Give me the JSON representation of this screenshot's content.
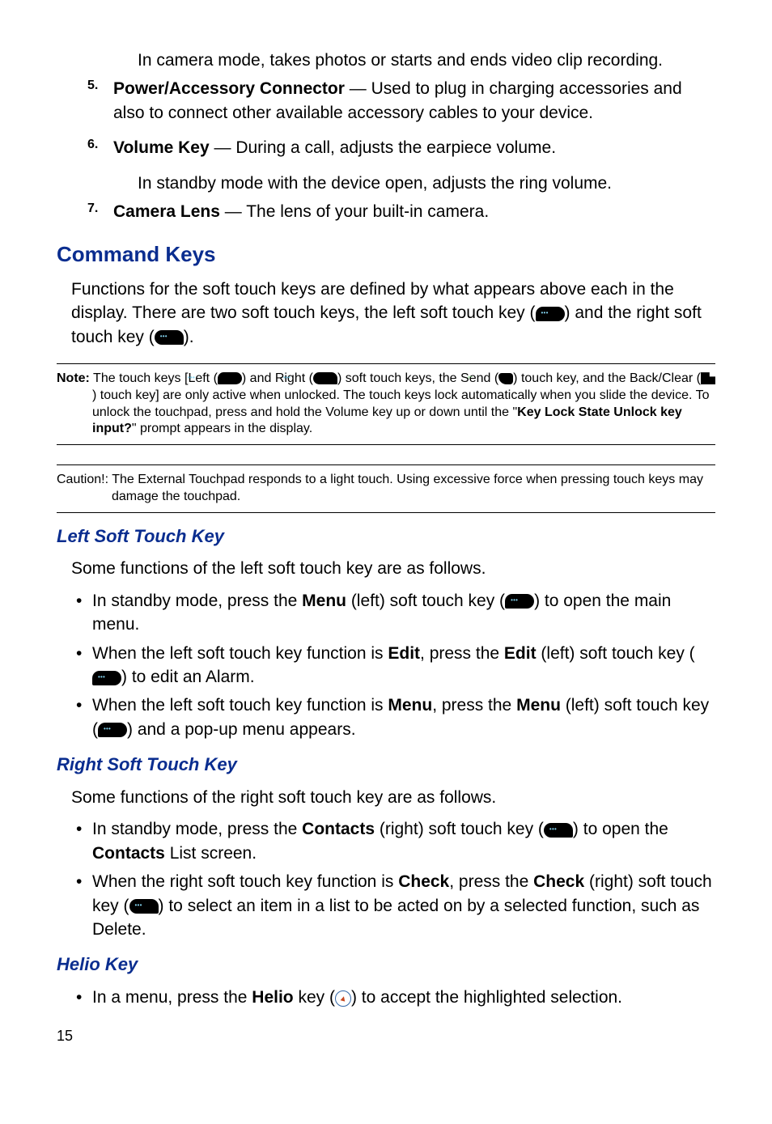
{
  "intro_camera": "In camera mode, takes photos or starts and ends video clip recording.",
  "items": {
    "5": {
      "num": "5.",
      "title": "Power/Accessory Connector",
      "text": " — Used to plug in charging accessories and also to connect other available accessory cables to your device."
    },
    "6": {
      "num": "6.",
      "title": "Volume Key",
      "text": " — During a call, adjusts the earpiece volume.",
      "sub": "In standby mode with the device open, adjusts the ring volume."
    },
    "7": {
      "num": "7.",
      "title": "Camera Lens",
      "text": " — The lens of your built-in camera."
    }
  },
  "command_keys": {
    "heading": "Command Keys",
    "p1a": "Functions for the soft touch keys are defined by what appears above each in the display. There are two soft touch keys, the left soft touch key (",
    "p1b": ") and the right soft touch key (",
    "p1c": ")."
  },
  "note": {
    "label": "Note:",
    "t1": " The touch keys [Left (",
    "t2": ") and Right (",
    "t3": ") soft touch keys, the Send (",
    "t4": ") touch key, and the Back/Clear (",
    "t5": ") touch key] are only active when unlocked. The touch keys lock automatically when you slide the device. To unlock the touchpad, press and hold the Volume key up or down until the \"",
    "bold": "Key Lock State Unlock key input?",
    "t6": "\" prompt appears in the display."
  },
  "caution": {
    "label": "Caution!:",
    "text": " The External Touchpad responds to a light touch. Using excessive force when pressing touch keys may damage the touchpad."
  },
  "left_key": {
    "heading": "Left Soft Touch Key",
    "intro": "Some functions of the left soft touch key are as follows.",
    "b1a": "In standby mode, press the ",
    "b1bold": "Menu",
    "b1b": " (left) soft touch key (",
    "b1c": ") to open the main menu.",
    "b2a": "When the left soft touch key function is ",
    "b2bold1": "Edit",
    "b2b": ", press the ",
    "b2bold2": "Edit",
    "b2c": " (left) soft touch key (",
    "b2d": ") to edit an Alarm.",
    "b3a": "When the left soft touch key function is ",
    "b3bold1": "Menu",
    "b3b": ", press the ",
    "b3bold2": "Menu",
    "b3c": " (left) soft touch key (",
    "b3d": ") and a pop-up menu appears."
  },
  "right_key": {
    "heading": "Right Soft Touch Key",
    "intro": "Some functions of the right soft touch key are as follows.",
    "b1a": "In standby mode, press the ",
    "b1bold": "Contacts",
    "b1b": " (right) soft touch key (",
    "b1c": ") to open the ",
    "b1bold2": "Contacts",
    "b1d": " List screen.",
    "b2a": "When the right soft touch key function is ",
    "b2bold1": "Check",
    "b2b": ", press the ",
    "b2bold2": "Check",
    "b2c": " (right) soft touch key (",
    "b2d": ") to select an item in a list to be acted on by a selected function, such as Delete."
  },
  "helio": {
    "heading": "Helio Key",
    "b1a": "In a menu, press the ",
    "b1bold": "Helio",
    "b1b": " key (",
    "b1c": ") to accept the highlighted selection."
  },
  "page": "15"
}
